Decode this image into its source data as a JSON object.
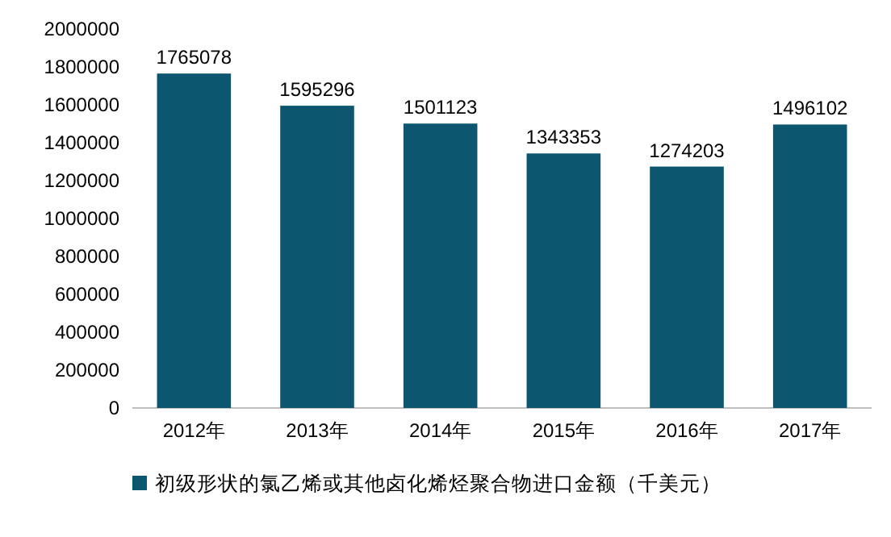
{
  "chart_data": {
    "type": "bar",
    "categories": [
      "2012年",
      "2013年",
      "2014年",
      "2015年",
      "2016年",
      "2017年"
    ],
    "series": [
      {
        "name": "初级形状的氯乙烯或其他卤化烯烃聚合物进口金额（千美元）",
        "color": "#0d5670",
        "values": [
          1765078,
          1595296,
          1501123,
          1343353,
          1274203,
          1496102
        ]
      }
    ],
    "ylim": [
      0,
      2000000
    ],
    "yticks": [
      0,
      200000,
      400000,
      600000,
      800000,
      1000000,
      1200000,
      1400000,
      1600000,
      1800000,
      2000000
    ],
    "data_labels": true,
    "legend": "bottom"
  }
}
